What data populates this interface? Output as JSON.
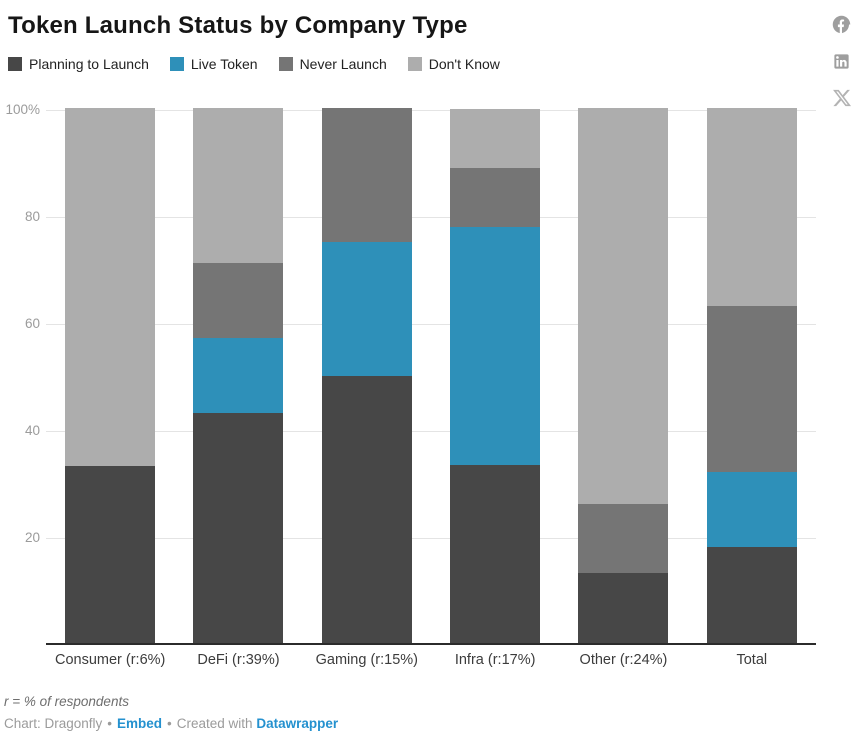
{
  "header": {
    "title": "Token Launch Status by Company Type"
  },
  "chart_data": {
    "type": "bar",
    "stacked": true,
    "normalized_to_100": true,
    "title": "Token Launch Status by Company Type",
    "categories": [
      "Consumer (r:6%)",
      "DeFi (r:39%)",
      "Gaming (r:15%)",
      "Infra (r:17%)",
      "Other (r:24%)",
      "Total"
    ],
    "series": [
      {
        "name": "Planning to Launch",
        "color": "#474747",
        "values": [
          33,
          43,
          50,
          33.3,
          13,
          18
        ]
      },
      {
        "name": "Live Token",
        "color": "#2e90b9",
        "values": [
          0,
          14,
          25,
          44.4,
          0,
          14
        ]
      },
      {
        "name": "Never Launch",
        "color": "#757575",
        "values": [
          0,
          14,
          25,
          11.1,
          13,
          31
        ]
      },
      {
        "name": "Don't Know",
        "color": "#adadad",
        "values": [
          67,
          29,
          0,
          11.1,
          74,
          37
        ]
      }
    ],
    "ylabel": "",
    "xlabel": "",
    "ylim": [
      0,
      100
    ],
    "yticks": [
      {
        "value": 20,
        "label": "20"
      },
      {
        "value": 40,
        "label": "40"
      },
      {
        "value": 60,
        "label": "60"
      },
      {
        "value": 80,
        "label": "80"
      },
      {
        "value": 100,
        "label": "100%"
      }
    ],
    "grid": true,
    "gridline_color": "#e4e4e4",
    "axis_line_color": "#2b2b2b",
    "legend_position": "top"
  },
  "footnote": "r = % of respondents",
  "footer": {
    "credit": "Chart: Dragonfly",
    "separator": "•",
    "embed_link": "Embed",
    "created_with": "Created with",
    "datawrapper_link": "Datawrapper",
    "link_color": "#2491cf"
  },
  "social": {
    "icon_color": "#9e9e9e"
  }
}
